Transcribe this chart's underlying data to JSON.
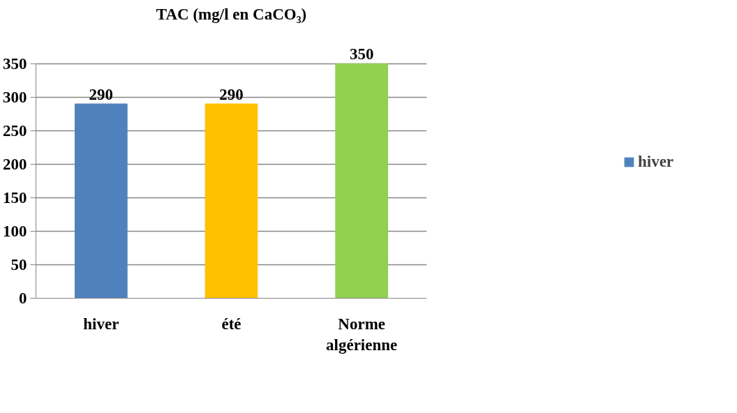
{
  "chart_data": {
    "type": "bar",
    "title": "TAC (mg/l en CaCO₃)",
    "categories": [
      "hiver",
      "été",
      "Norme algérienne"
    ],
    "series": [
      {
        "name": "hiver",
        "colors": [
          "#4f81bd",
          "#ffc000",
          "#92d050"
        ],
        "values": [
          290,
          290,
          350
        ]
      }
    ],
    "ylim": [
      0,
      350
    ],
    "yticks": [
      0,
      50,
      100,
      150,
      200,
      250,
      300,
      350
    ],
    "grid": "y",
    "legend": "right",
    "data_labels": true
  }
}
